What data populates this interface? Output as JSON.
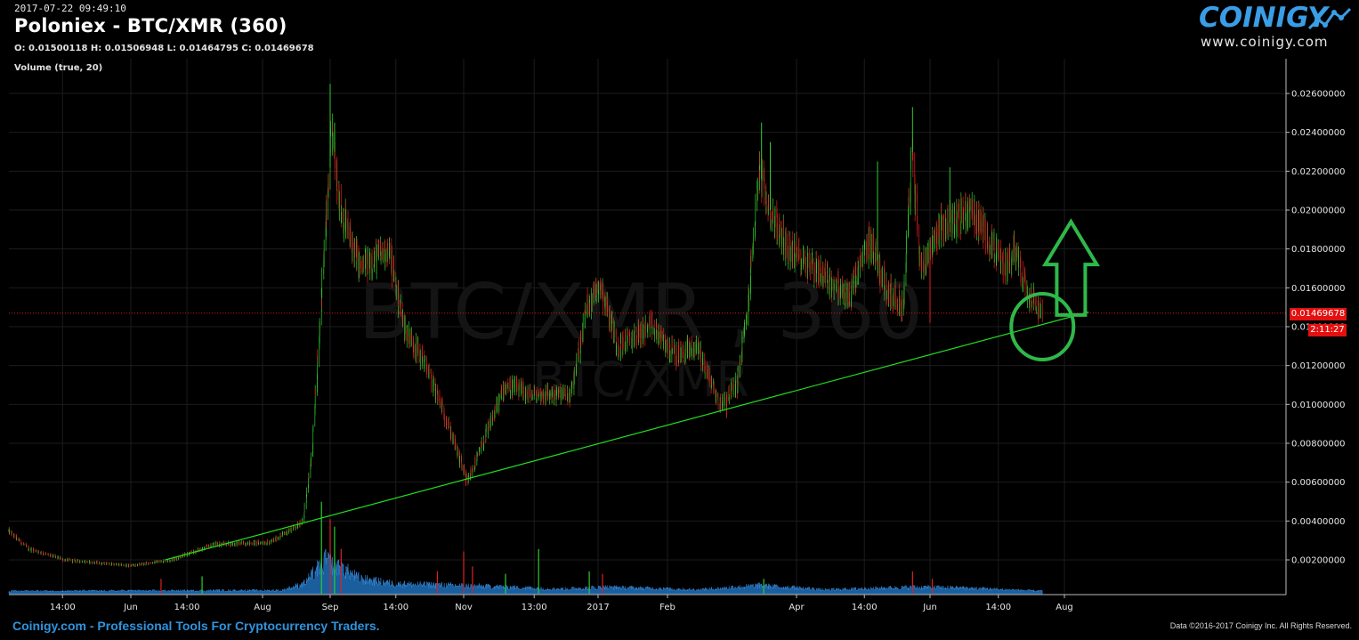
{
  "header": {
    "datetime": "2017-07-22 09:49:10",
    "title": "Poloniex - BTC/XMR (360)",
    "ohlc": "O: 0.01500118 H: 0.01506948 L: 0.01464795 C: 0.01469678",
    "volume_label": "Volume (true, 20)"
  },
  "logo": {
    "brand": "COINIGY",
    "url": "www.coinigy.com"
  },
  "watermark": {
    "main": "BTC/XMR , 360",
    "sub": "BTC/XMR"
  },
  "footer": {
    "left": "Coinigy.com - Professional Tools For Cryptocurrency Traders.",
    "right": "Data ©2016-2017 Coinigy Inc. All Rights Reserved."
  },
  "price_marker": {
    "price": "0.01469678",
    "countdown": "2:11:27"
  },
  "colors": {
    "background": "#000000",
    "up": "#2ecc2e",
    "down": "#e02020",
    "volume": "#1f6fb8",
    "trendline": "#22dd22",
    "annotation": "#2fb84a",
    "price_line": "#d01818",
    "brand": "#2f93dd"
  },
  "annotations": {
    "trendline": {
      "from": {
        "date": "2016-06-17",
        "price": 0.002
      },
      "to": {
        "date": "2017-08-12",
        "price": 0.01475
      }
    },
    "circle_at": {
      "date": "2017-07-22",
      "price": 0.014
    },
    "arrow": {
      "direction": "up",
      "date": "2017-08-04",
      "price_range": [
        0.0146,
        0.0194
      ]
    }
  },
  "chart_data": {
    "type": "candlestick",
    "title": "Poloniex - BTC/XMR (360)",
    "exchange": "Poloniex",
    "pair": "BTC/XMR",
    "interval": "360",
    "ylim": [
      0.0001,
      0.027
    ],
    "y_ticks": [
      "0.02600000",
      "0.02400000",
      "0.02200000",
      "0.02000000",
      "0.01800000",
      "0.01600000",
      "0.01400000",
      "0.01200000",
      "0.01000000",
      "0.00800000",
      "0.00600000",
      "0.00400000",
      "0.00200000"
    ],
    "x_ticks": [
      {
        "label": "14:00",
        "date": "2016-05-04"
      },
      {
        "label": "Jun",
        "date": "2016-06-01"
      },
      {
        "label": "14:00",
        "date": "2016-06-27"
      },
      {
        "label": "Aug",
        "date": "2016-08-01"
      },
      {
        "label": "Sep",
        "date": "2016-09-01"
      },
      {
        "label": "14:00",
        "date": "2016-10-01"
      },
      {
        "label": "Nov",
        "date": "2016-11-01"
      },
      {
        "label": "13:00",
        "date": "2016-12-03"
      },
      {
        "label": "2017",
        "date": "2017-01-01"
      },
      {
        "label": "Feb",
        "date": "2017-02-01"
      },
      {
        "label": "Apr",
        "date": "2017-04-01"
      },
      {
        "label": "14:00",
        "date": "2017-05-02"
      },
      {
        "label": "Jun",
        "date": "2017-06-01"
      },
      {
        "label": "14:00",
        "date": "2017-07-02"
      },
      {
        "label": "Aug",
        "date": "2017-08-01"
      }
    ],
    "close_path": [
      {
        "date": "2016-04-12",
        "close": 0.0035
      },
      {
        "date": "2016-04-20",
        "close": 0.0026
      },
      {
        "date": "2016-05-05",
        "close": 0.002
      },
      {
        "date": "2016-06-01",
        "close": 0.0017
      },
      {
        "date": "2016-06-20",
        "close": 0.002
      },
      {
        "date": "2016-07-10",
        "close": 0.0028
      },
      {
        "date": "2016-08-05",
        "close": 0.0029
      },
      {
        "date": "2016-08-20",
        "close": 0.004
      },
      {
        "date": "2016-08-24",
        "close": 0.0075
      },
      {
        "date": "2016-08-28",
        "close": 0.015
      },
      {
        "date": "2016-09-02",
        "close": 0.024
      },
      {
        "date": "2016-09-06",
        "close": 0.02
      },
      {
        "date": "2016-09-15",
        "close": 0.017
      },
      {
        "date": "2016-09-28",
        "close": 0.018
      },
      {
        "date": "2016-10-05",
        "close": 0.014
      },
      {
        "date": "2016-10-15",
        "close": 0.012
      },
      {
        "date": "2016-10-25",
        "close": 0.009
      },
      {
        "date": "2016-11-03",
        "close": 0.006
      },
      {
        "date": "2016-11-10",
        "close": 0.008
      },
      {
        "date": "2016-11-20",
        "close": 0.011
      },
      {
        "date": "2016-12-01",
        "close": 0.0105
      },
      {
        "date": "2016-12-20",
        "close": 0.0105
      },
      {
        "date": "2016-12-27",
        "close": 0.015
      },
      {
        "date": "2017-01-02",
        "close": 0.0163
      },
      {
        "date": "2017-01-10",
        "close": 0.013
      },
      {
        "date": "2017-01-25",
        "close": 0.014
      },
      {
        "date": "2017-02-05",
        "close": 0.0125
      },
      {
        "date": "2017-02-15",
        "close": 0.013
      },
      {
        "date": "2017-02-25",
        "close": 0.01
      },
      {
        "date": "2017-03-05",
        "close": 0.011
      },
      {
        "date": "2017-03-10",
        "close": 0.015
      },
      {
        "date": "2017-03-15",
        "close": 0.022
      },
      {
        "date": "2017-03-20",
        "close": 0.02
      },
      {
        "date": "2017-03-28",
        "close": 0.018
      },
      {
        "date": "2017-04-10",
        "close": 0.017
      },
      {
        "date": "2017-04-25",
        "close": 0.0155
      },
      {
        "date": "2017-05-05",
        "close": 0.0185
      },
      {
        "date": "2017-05-12",
        "close": 0.016
      },
      {
        "date": "2017-05-20",
        "close": 0.015
      },
      {
        "date": "2017-05-24",
        "close": 0.023
      },
      {
        "date": "2017-05-28",
        "close": 0.017
      },
      {
        "date": "2017-06-05",
        "close": 0.019
      },
      {
        "date": "2017-06-12",
        "close": 0.0195
      },
      {
        "date": "2017-06-20",
        "close": 0.02
      },
      {
        "date": "2017-06-28",
        "close": 0.0185
      },
      {
        "date": "2017-07-05",
        "close": 0.017
      },
      {
        "date": "2017-07-10",
        "close": 0.018
      },
      {
        "date": "2017-07-15",
        "close": 0.016
      },
      {
        "date": "2017-07-22",
        "close": 0.0147
      }
    ],
    "wick_spikes": [
      {
        "date": "2016-09-01",
        "high": 0.0265
      },
      {
        "date": "2016-09-03",
        "high": 0.0245
      },
      {
        "date": "2017-03-16",
        "high": 0.0245
      },
      {
        "date": "2017-03-20",
        "high": 0.0235
      },
      {
        "date": "2017-05-24",
        "high": 0.0253
      },
      {
        "date": "2017-05-08",
        "high": 0.0225
      },
      {
        "date": "2017-06-10",
        "high": 0.0222
      },
      {
        "date": "2017-06-01",
        "low": 0.0142
      },
      {
        "date": "2016-11-02",
        "low": 0.0058
      },
      {
        "date": "2017-02-28",
        "low": 0.0093
      }
    ],
    "volume_envelope": [
      {
        "date": "2016-04-12",
        "vol": 0.08
      },
      {
        "date": "2016-08-10",
        "vol": 0.1
      },
      {
        "date": "2016-08-20",
        "vol": 0.3
      },
      {
        "date": "2016-08-30",
        "vol": 1.0
      },
      {
        "date": "2016-09-05",
        "vol": 0.85
      },
      {
        "date": "2016-09-15",
        "vol": 0.45
      },
      {
        "date": "2016-10-01",
        "vol": 0.3
      },
      {
        "date": "2016-11-01",
        "vol": 0.25
      },
      {
        "date": "2016-12-15",
        "vol": 0.14
      },
      {
        "date": "2017-01-05",
        "vol": 0.2
      },
      {
        "date": "2017-02-15",
        "vol": 0.12
      },
      {
        "date": "2017-03-15",
        "vol": 0.25
      },
      {
        "date": "2017-04-15",
        "vol": 0.12
      },
      {
        "date": "2017-05-25",
        "vol": 0.2
      },
      {
        "date": "2017-06-15",
        "vol": 0.18
      },
      {
        "date": "2017-07-22",
        "vol": 0.08
      }
    ],
    "volume_spikes": [
      {
        "date": "2016-08-28",
        "vol": 1.85,
        "dir": "up"
      },
      {
        "date": "2016-09-01",
        "vol": 1.5,
        "dir": "down"
      },
      {
        "date": "2016-09-03",
        "vol": 1.35,
        "dir": "up"
      },
      {
        "date": "2016-09-06",
        "vol": 0.9,
        "dir": "down"
      },
      {
        "date": "2016-06-15",
        "vol": 0.3,
        "dir": "down"
      },
      {
        "date": "2016-07-04",
        "vol": 0.35,
        "dir": "up"
      },
      {
        "date": "2016-10-20",
        "vol": 0.45,
        "dir": "down"
      },
      {
        "date": "2016-11-01",
        "vol": 0.85,
        "dir": "down"
      },
      {
        "date": "2016-11-05",
        "vol": 0.55,
        "dir": "down"
      },
      {
        "date": "2016-11-20",
        "vol": 0.4,
        "dir": "up"
      },
      {
        "date": "2016-12-05",
        "vol": 0.9,
        "dir": "up"
      },
      {
        "date": "2016-12-28",
        "vol": 0.45,
        "dir": "up"
      },
      {
        "date": "2017-01-03",
        "vol": 0.4,
        "dir": "down"
      },
      {
        "date": "2017-03-17",
        "vol": 0.3,
        "dir": "up"
      },
      {
        "date": "2017-05-24",
        "vol": 0.45,
        "dir": "down"
      },
      {
        "date": "2017-06-02",
        "vol": 0.3,
        "dir": "down"
      }
    ]
  }
}
